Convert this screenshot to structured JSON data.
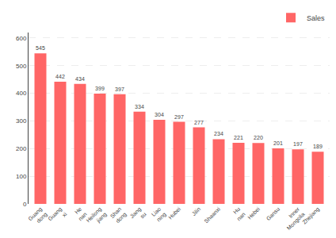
{
  "chart_data": {
    "type": "bar",
    "categories": [
      "Guang\ndong",
      "Guang\nxi",
      "He\nnan",
      "Heilong\njiang",
      "Shan\ndong",
      "Jiang\nsu",
      "Liao\nning",
      "Hubei",
      "Jilin",
      "Shaanxi",
      "Hu\nnan",
      "Hebei",
      "Gansu",
      "Inner\nMongolia",
      "Zhejiang"
    ],
    "series": [
      {
        "name": "Sales",
        "color": "#FF6666",
        "values": [
          545,
          442,
          434,
          399,
          397,
          334,
          304,
          297,
          277,
          234,
          221,
          220,
          201,
          197,
          189
        ]
      }
    ],
    "ylim": [
      0,
      620
    ],
    "yticks": [
      0,
      100,
      200,
      300,
      400,
      500,
      600
    ],
    "grid": true,
    "legend": "top",
    "data_labels": true
  }
}
